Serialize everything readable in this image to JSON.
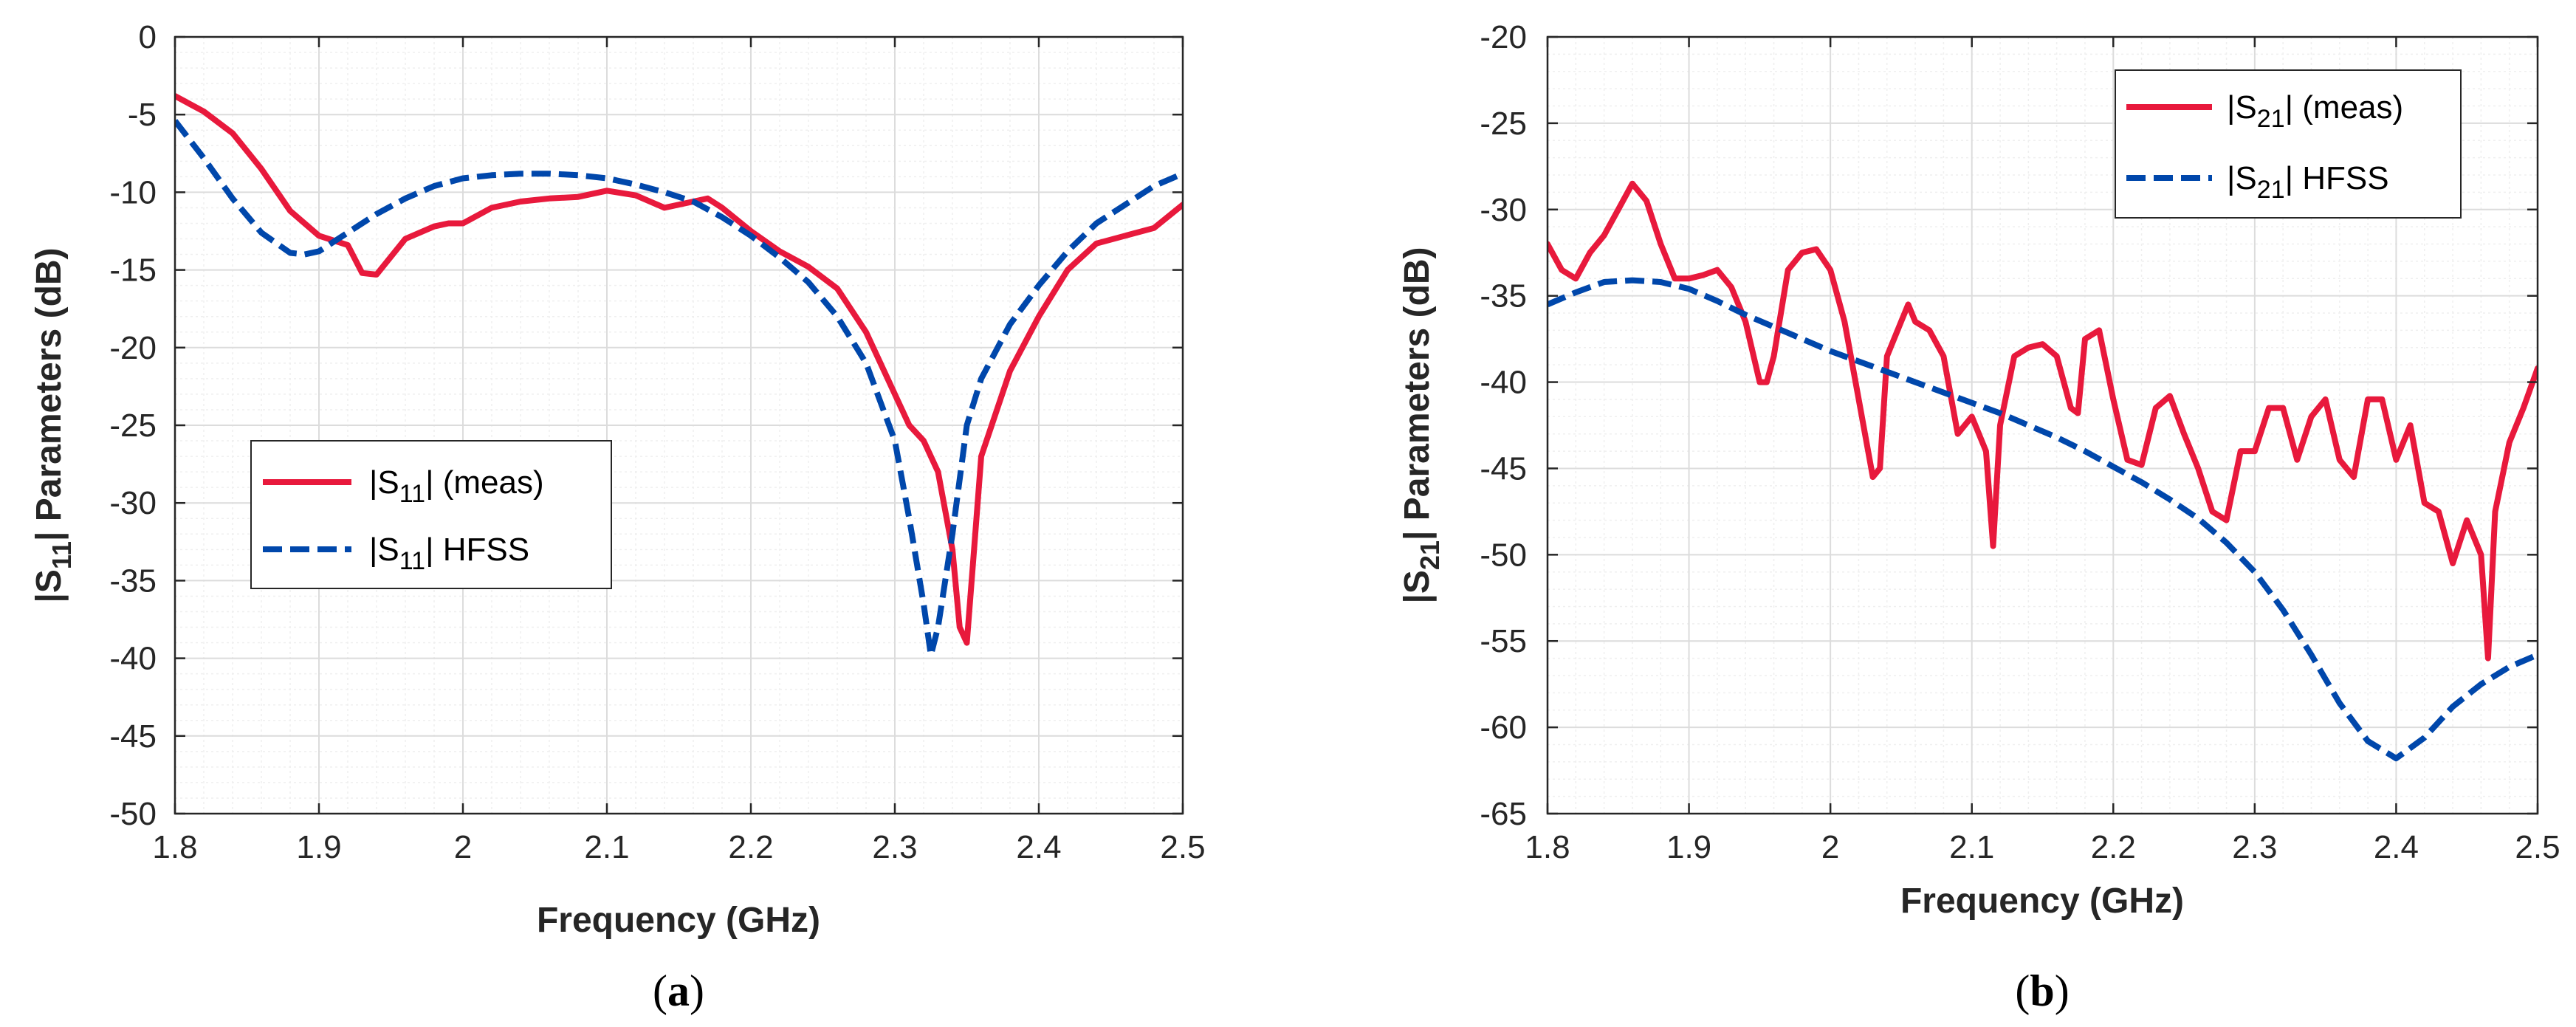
{
  "colors": {
    "meas": "#E8193C",
    "hfss": "#0047AB",
    "grid_major": "#DCDCDC",
    "grid_minor": "#EFEFEF",
    "axis": "#262626"
  },
  "chart_data": [
    {
      "type": "line",
      "panel_label": "a",
      "xlabel": "Frequency (GHz)",
      "ylabel_parts": {
        "pre": "|S",
        "sub": "11",
        "post": "| Parameters (dB)"
      },
      "xlim": [
        1.8,
        2.5
      ],
      "ylim": [
        -50,
        0
      ],
      "xticks": [
        1.8,
        1.9,
        2.0,
        2.1,
        2.2,
        2.3,
        2.4,
        2.5
      ],
      "xtick_labels": [
        "1.8",
        "1.9",
        "2",
        "2.1",
        "2.2",
        "2.3",
        "2.4",
        "2.5"
      ],
      "yticks": [
        0,
        -5,
        -10,
        -15,
        -20,
        -25,
        -30,
        -35,
        -40,
        -45,
        -50
      ],
      "ytick_labels": [
        "0",
        "-5",
        "-10",
        "-15",
        "-20",
        "-25",
        "-30",
        "-35",
        "-40",
        "-45",
        "-50"
      ],
      "grid": true,
      "legend": {
        "placement": "center-left",
        "entries": [
          {
            "pre": "|S",
            "sub": "11",
            "post": "| (meas)"
          },
          {
            "pre": "|S",
            "sub": "11",
            "post": "| HFSS"
          }
        ]
      },
      "series": [
        {
          "name": "|S11| (meas)",
          "style": "solid",
          "x": [
            1.8,
            1.82,
            1.84,
            1.86,
            1.88,
            1.9,
            1.92,
            1.93,
            1.94,
            1.96,
            1.98,
            1.99,
            2.0,
            2.02,
            2.04,
            2.06,
            2.08,
            2.1,
            2.12,
            2.14,
            2.16,
            2.17,
            2.18,
            2.2,
            2.22,
            2.24,
            2.26,
            2.28,
            2.3,
            2.31,
            2.32,
            2.33,
            2.34,
            2.345,
            2.35,
            2.355,
            2.36,
            2.38,
            2.4,
            2.42,
            2.44,
            2.46,
            2.48,
            2.5
          ],
          "y": [
            -3.8,
            -4.8,
            -6.2,
            -8.5,
            -11.2,
            -12.8,
            -13.4,
            -15.2,
            -15.3,
            -13,
            -12.2,
            -12,
            -12,
            -11,
            -10.6,
            -10.4,
            -10.3,
            -9.9,
            -10.2,
            -11,
            -10.6,
            -10.4,
            -11,
            -12.5,
            -13.8,
            -14.8,
            -16.2,
            -19,
            -23,
            -25,
            -26,
            -28,
            -33,
            -38,
            -39,
            -33,
            -27,
            -21.5,
            -18,
            -15,
            -13.3,
            -12.8,
            -12.3,
            -10.8
          ]
        },
        {
          "name": "|S11| HFSS",
          "style": "dashed",
          "x": [
            1.8,
            1.82,
            1.84,
            1.86,
            1.88,
            1.89,
            1.9,
            1.92,
            1.94,
            1.96,
            1.98,
            2.0,
            2.02,
            2.04,
            2.06,
            2.08,
            2.1,
            2.12,
            2.14,
            2.16,
            2.18,
            2.2,
            2.22,
            2.24,
            2.26,
            2.28,
            2.3,
            2.31,
            2.32,
            2.325,
            2.33,
            2.34,
            2.35,
            2.36,
            2.38,
            2.4,
            2.42,
            2.44,
            2.46,
            2.48,
            2.5
          ],
          "y": [
            -5.4,
            -7.8,
            -10.4,
            -12.6,
            -13.9,
            -14,
            -13.8,
            -12.6,
            -11.4,
            -10.4,
            -9.6,
            -9.1,
            -8.9,
            -8.8,
            -8.8,
            -8.9,
            -9.1,
            -9.5,
            -10,
            -10.6,
            -11.6,
            -12.8,
            -14.2,
            -15.8,
            -18,
            -21,
            -26,
            -31,
            -36.5,
            -39.8,
            -38,
            -32,
            -25,
            -22,
            -18.5,
            -16,
            -13.8,
            -12,
            -10.8,
            -9.6,
            -8.8
          ]
        }
      ]
    },
    {
      "type": "line",
      "panel_label": "b",
      "xlabel": "Frequency (GHz)",
      "ylabel_parts": {
        "pre": "|S",
        "sub": "21",
        "post": "| Parameters (dB)"
      },
      "xlim": [
        1.8,
        2.5
      ],
      "ylim": [
        -65,
        -20
      ],
      "xticks": [
        1.8,
        1.9,
        2.0,
        2.1,
        2.2,
        2.3,
        2.4,
        2.5
      ],
      "xtick_labels": [
        "1.8",
        "1.9",
        "2",
        "2.1",
        "2.2",
        "2.3",
        "2.4",
        "2.5"
      ],
      "yticks": [
        -20,
        -25,
        -30,
        -35,
        -40,
        -45,
        -50,
        -55,
        -60,
        -65
      ],
      "ytick_labels": [
        "-20",
        "-25",
        "-30",
        "-35",
        "-40",
        "-45",
        "-50",
        "-55",
        "-60",
        "-65"
      ],
      "grid": true,
      "legend": {
        "placement": "top-right",
        "entries": [
          {
            "pre": "|S",
            "sub": "21",
            "post": "| (meas)"
          },
          {
            "pre": "|S",
            "sub": "21",
            "post": "| HFSS"
          }
        ]
      },
      "series": [
        {
          "name": "|S21| (meas)",
          "style": "solid",
          "x": [
            1.8,
            1.81,
            1.82,
            1.83,
            1.84,
            1.85,
            1.86,
            1.87,
            1.88,
            1.89,
            1.9,
            1.91,
            1.92,
            1.93,
            1.94,
            1.95,
            1.955,
            1.96,
            1.97,
            1.98,
            1.99,
            2.0,
            2.01,
            2.02,
            2.03,
            2.035,
            2.04,
            2.05,
            2.055,
            2.06,
            2.07,
            2.08,
            2.09,
            2.1,
            2.11,
            2.115,
            2.12,
            2.13,
            2.14,
            2.15,
            2.16,
            2.17,
            2.175,
            2.18,
            2.19,
            2.2,
            2.21,
            2.22,
            2.23,
            2.24,
            2.25,
            2.26,
            2.27,
            2.28,
            2.29,
            2.3,
            2.31,
            2.32,
            2.33,
            2.34,
            2.35,
            2.36,
            2.37,
            2.38,
            2.39,
            2.4,
            2.41,
            2.42,
            2.43,
            2.44,
            2.45,
            2.46,
            2.465,
            2.47,
            2.48,
            2.49,
            2.5
          ],
          "y": [
            -32,
            -33.5,
            -34,
            -32.5,
            -31.5,
            -30,
            -28.5,
            -29.5,
            -32,
            -34,
            -34,
            -33.8,
            -33.5,
            -34.5,
            -36.5,
            -40,
            -40,
            -38.5,
            -33.5,
            -32.5,
            -32.3,
            -33.5,
            -36.5,
            -41,
            -45.5,
            -45,
            -38.5,
            -36.5,
            -35.5,
            -36.5,
            -37,
            -38.5,
            -43,
            -42,
            -44,
            -49.5,
            -42.5,
            -38.5,
            -38,
            -37.8,
            -38.5,
            -41.5,
            -41.8,
            -37.5,
            -37,
            -41,
            -44.5,
            -44.8,
            -41.5,
            -40.8,
            -43,
            -45,
            -47.5,
            -48,
            -44,
            -44,
            -41.5,
            -41.5,
            -44.5,
            -42,
            -41,
            -44.5,
            -45.5,
            -41,
            -41,
            -44.5,
            -42.5,
            -47,
            -47.5,
            -50.5,
            -48,
            -50,
            -56,
            -47.5,
            -43.5,
            -41.5,
            -39.2
          ]
        },
        {
          "name": "|S21| HFSS",
          "style": "dashed",
          "x": [
            1.8,
            1.82,
            1.84,
            1.86,
            1.88,
            1.9,
            1.92,
            1.94,
            1.96,
            1.98,
            2.0,
            2.02,
            2.04,
            2.06,
            2.08,
            2.1,
            2.12,
            2.14,
            2.16,
            2.18,
            2.2,
            2.22,
            2.24,
            2.26,
            2.28,
            2.3,
            2.32,
            2.34,
            2.36,
            2.38,
            2.4,
            2.42,
            2.44,
            2.46,
            2.48,
            2.5
          ],
          "y": [
            -35.5,
            -34.8,
            -34.2,
            -34.1,
            -34.2,
            -34.6,
            -35.3,
            -36.1,
            -36.8,
            -37.5,
            -38.2,
            -38.8,
            -39.4,
            -40,
            -40.6,
            -41.2,
            -41.8,
            -42.5,
            -43.2,
            -44,
            -44.9,
            -45.8,
            -46.8,
            -47.9,
            -49.3,
            -51,
            -53.2,
            -55.8,
            -58.6,
            -60.8,
            -61.8,
            -60.6,
            -58.8,
            -57.5,
            -56.5,
            -55.8
          ]
        }
      ]
    }
  ]
}
